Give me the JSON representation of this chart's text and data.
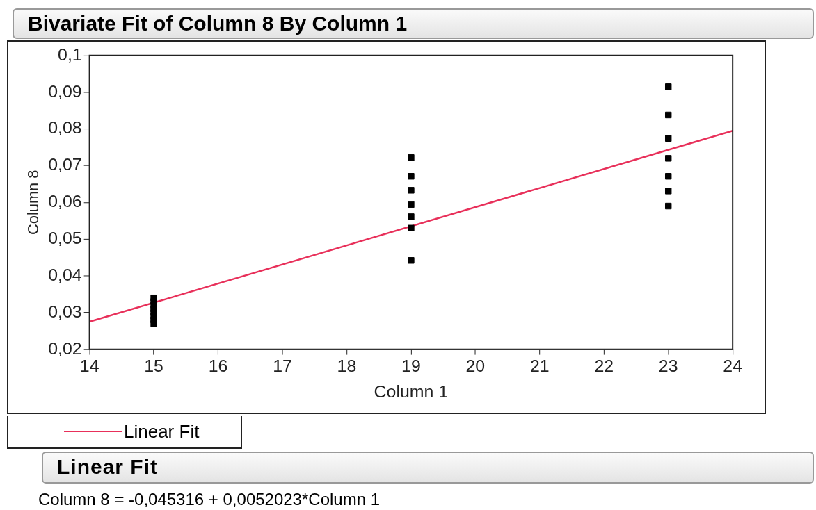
{
  "chart_data": {
    "type": "scatter",
    "title": "Bivariate Fit of Column 8 By Column 1",
    "xlabel": "Column 1",
    "ylabel": "Column 8",
    "xlim": [
      14,
      24
    ],
    "xticks": [
      14,
      15,
      16,
      17,
      18,
      19,
      20,
      21,
      22,
      23,
      24
    ],
    "ylim": [
      0.02,
      0.1
    ],
    "yticks": [
      {
        "value": 0.02,
        "label": "0,02"
      },
      {
        "value": 0.03,
        "label": "0,03"
      },
      {
        "value": 0.04,
        "label": "0,04"
      },
      {
        "value": 0.05,
        "label": "0,05"
      },
      {
        "value": 0.06,
        "label": "0,06"
      },
      {
        "value": 0.07,
        "label": "0,07"
      },
      {
        "value": 0.08,
        "label": "0,08"
      },
      {
        "value": 0.09,
        "label": "0,09"
      },
      {
        "value": 0.1,
        "label": "0,1"
      }
    ],
    "grid": false,
    "legend": "bottom left",
    "series": [
      {
        "type": "scatter",
        "marker": "square",
        "color": "#000000",
        "x": [
          15,
          15,
          15,
          15,
          15,
          15,
          15,
          15,
          19,
          19,
          19,
          19,
          19,
          19,
          19,
          23,
          23,
          23,
          23,
          23,
          23,
          23
        ],
        "values": [
          0.034,
          0.033,
          0.032,
          0.031,
          0.03,
          0.029,
          0.028,
          0.027,
          0.0722,
          0.0671,
          0.0633,
          0.0594,
          0.0561,
          0.053,
          0.0442,
          0.0915,
          0.0838,
          0.0774,
          0.072,
          0.0671,
          0.0631,
          0.059
        ]
      },
      {
        "type": "line",
        "marker": "none",
        "name": "Linear Fit",
        "color": "#e8305a",
        "x": [
          14,
          24
        ],
        "values": [
          0.0275,
          0.0795
        ]
      }
    ],
    "annotations": [
      "Linear Fit",
      "Column 8 = -0,045316 + 0,0052023*Column 1"
    ]
  }
}
